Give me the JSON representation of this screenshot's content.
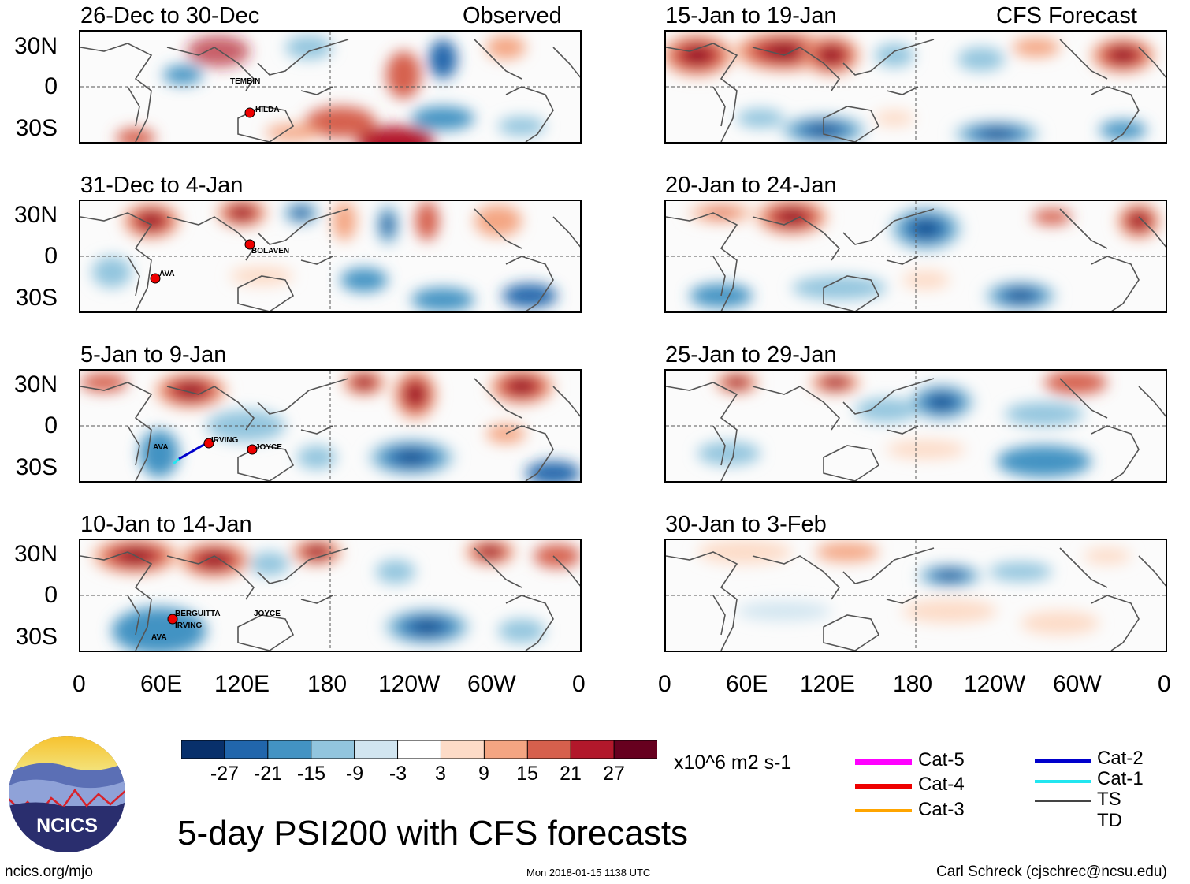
{
  "header": {
    "observed_label": "Observed",
    "forecast_label": "CFS Forecast"
  },
  "panels": {
    "observed": [
      {
        "title": "26-Dec to 30-Dec",
        "storms": [
          "TEMBIN",
          "HILDA"
        ]
      },
      {
        "title": "31-Dec to 4-Jan",
        "storms": [
          "BOLAVEN",
          "AVA"
        ]
      },
      {
        "title": "5-Jan to 9-Jan",
        "storms": [
          "AVA",
          "IRVING",
          "JOYCE"
        ]
      },
      {
        "title": "10-Jan to 14-Jan",
        "storms": [
          "BERGUITTA",
          "IRVING",
          "AVA",
          "JOYCE"
        ]
      }
    ],
    "forecast": [
      {
        "title": "15-Jan to 19-Jan"
      },
      {
        "title": "20-Jan to 24-Jan"
      },
      {
        "title": "25-Jan to 29-Jan"
      },
      {
        "title": "30-Jan to 3-Feb"
      }
    ]
  },
  "axes": {
    "lat_ticks": [
      "30N",
      "0",
      "30S"
    ],
    "lon_ticks": [
      "0",
      "60E",
      "120E",
      "180",
      "120W",
      "60W",
      "0"
    ]
  },
  "colorbar": {
    "labels": [
      "-27",
      "-21",
      "-15",
      "-9",
      "-3",
      "3",
      "9",
      "15",
      "21",
      "27"
    ],
    "colors": [
      "#08306b",
      "#2166ac",
      "#4393c3",
      "#92c5de",
      "#d1e5f0",
      "#ffffff",
      "#fddbc7",
      "#f4a582",
      "#d6604d",
      "#b2182b",
      "#67001f"
    ],
    "units": "x10^6 m2 s-1"
  },
  "legend": {
    "left": [
      {
        "label": "Cat-5",
        "color": "#ff00ff"
      },
      {
        "label": "Cat-4",
        "color": "#ee0000"
      },
      {
        "label": "Cat-3",
        "color": "#ffa500"
      }
    ],
    "right": [
      {
        "label": "Cat-2",
        "color": "#0000cc"
      },
      {
        "label": "Cat-1",
        "color": "#22e6f0"
      },
      {
        "label": "TS",
        "color": "#444444"
      },
      {
        "label": "TD",
        "color": "#999999"
      }
    ]
  },
  "footer": {
    "logo_text": "NCICS",
    "main_title": "5-day PSI200 with CFS forecasts",
    "website": "ncics.org/mjo",
    "timestamp": "Mon 2018-01-15 1138 UTC",
    "author": "Carl Schreck (cjschrec@ncsu.edu)"
  }
}
